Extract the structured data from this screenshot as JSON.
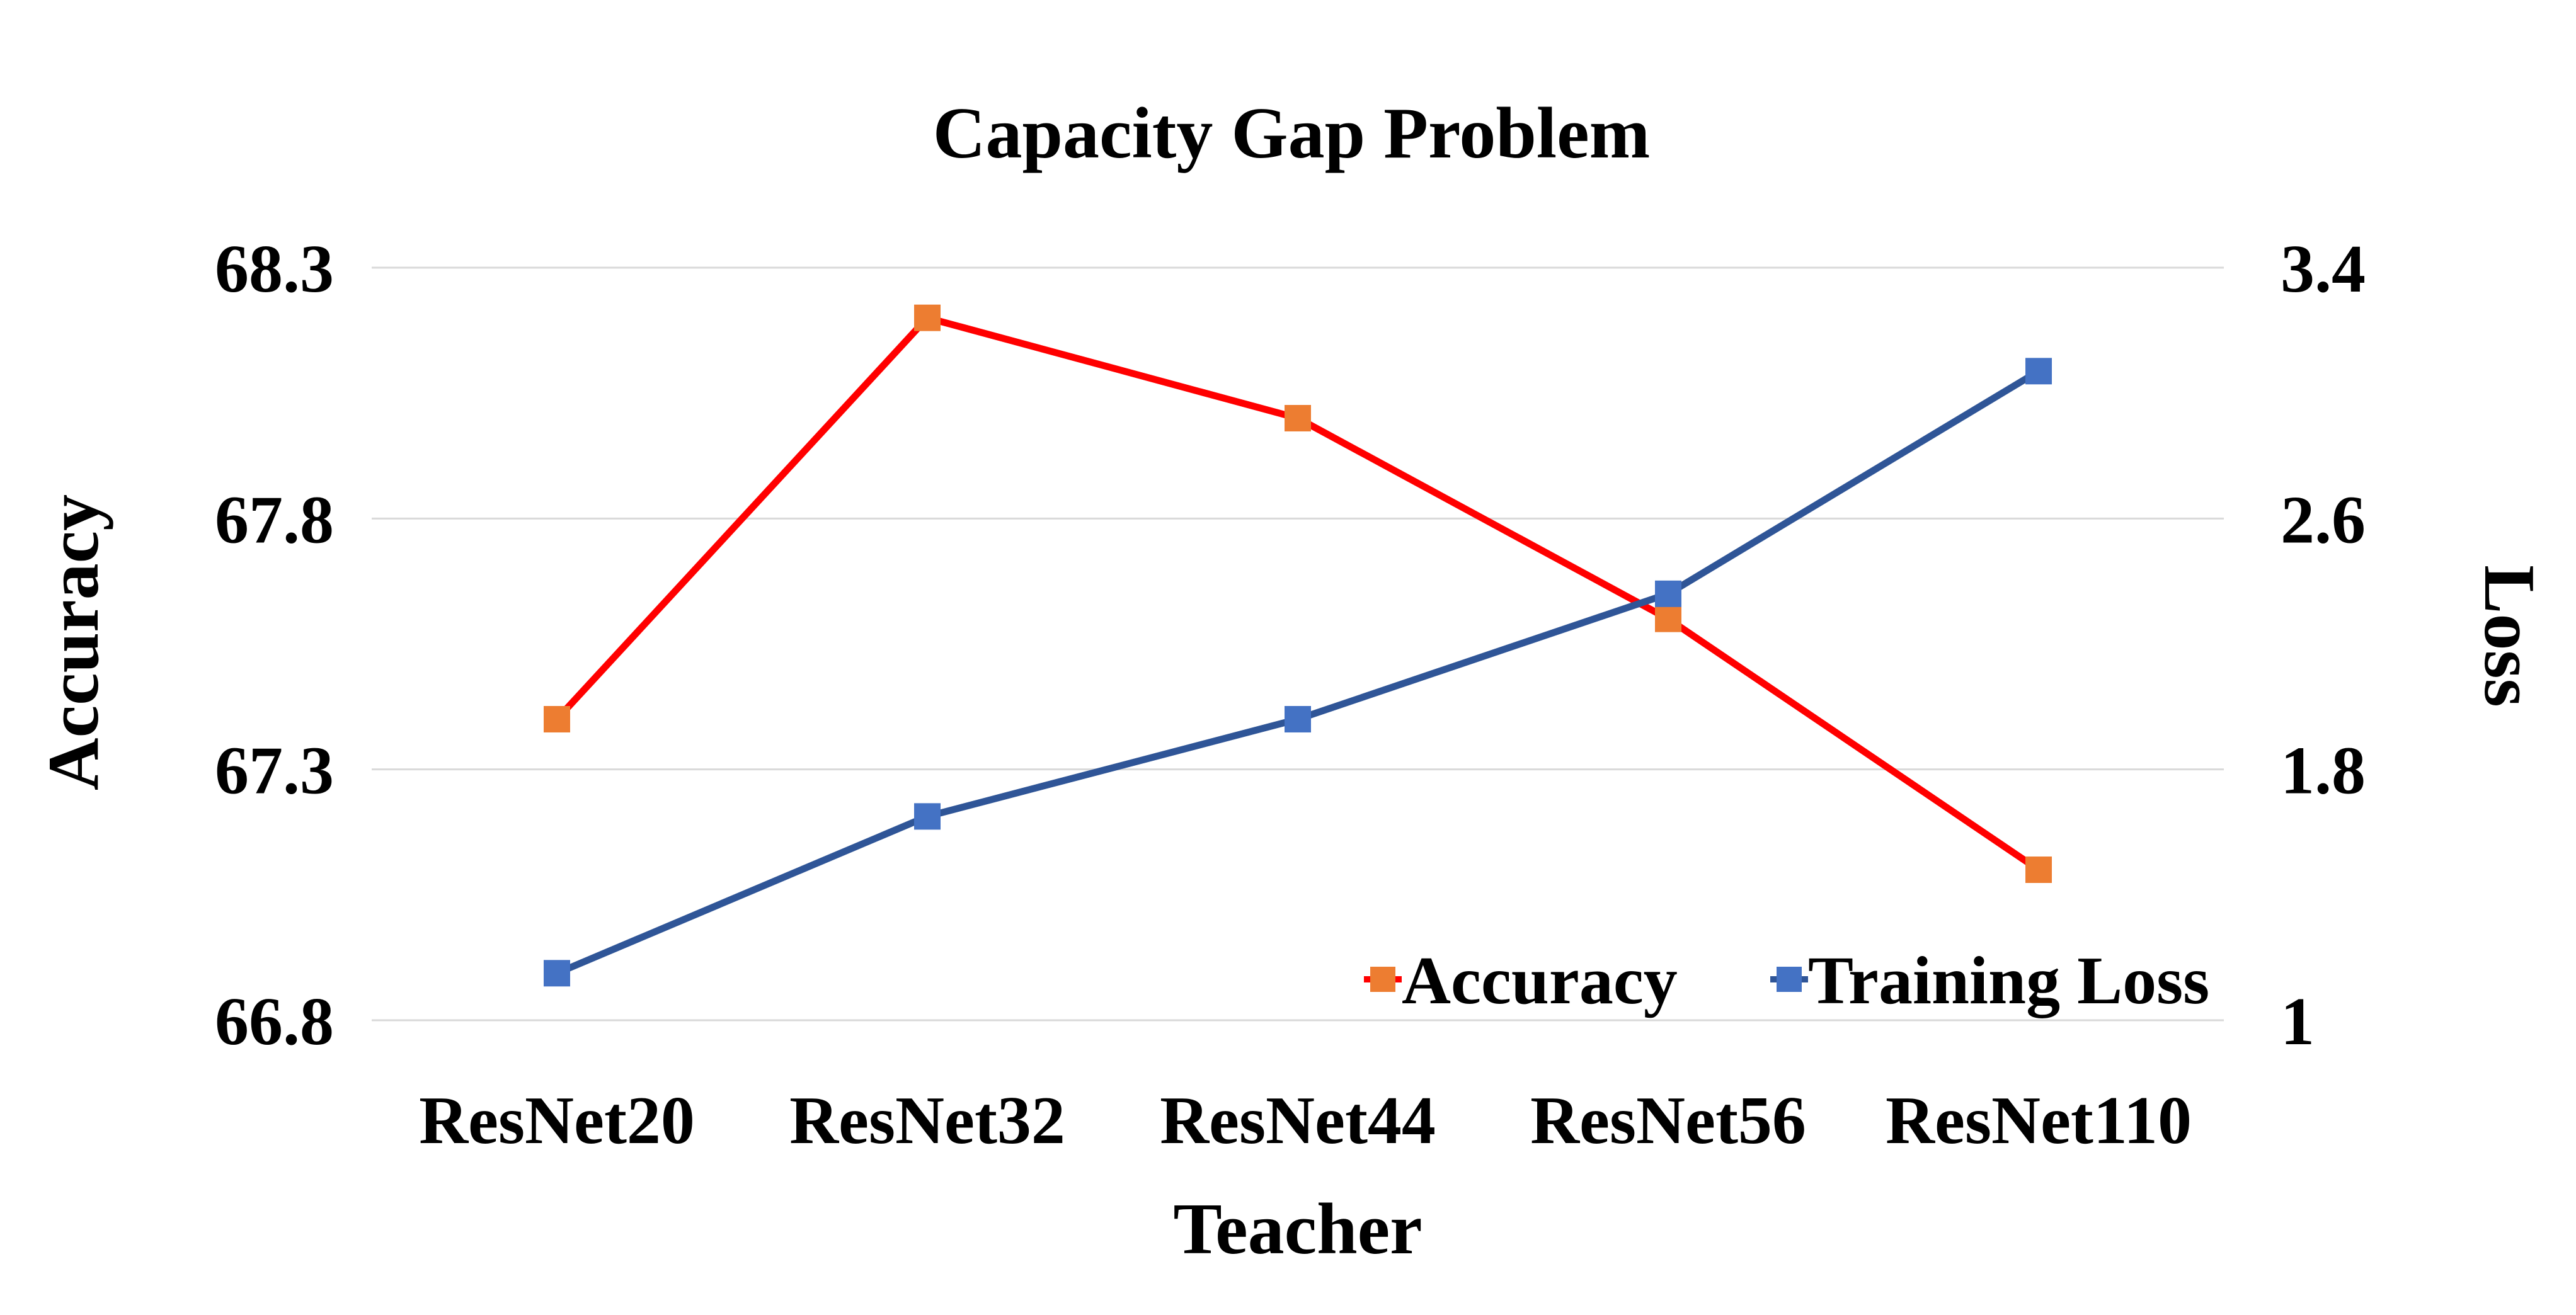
{
  "chart_data": {
    "type": "line",
    "title": "Capacity Gap Problem",
    "xlabel": "Teacher",
    "ylabel": "Accuracy",
    "y2label": "Loss",
    "categories": [
      "ResNet20",
      "ResNet32",
      "ResNet44",
      "ResNet56",
      "ResNet110"
    ],
    "ylim": [
      66.8,
      68.3
    ],
    "y2lim": [
      1,
      3.4
    ],
    "yticks": [
      "66.8",
      "67.3",
      "67.8",
      "68.3"
    ],
    "y2ticks": [
      "1",
      "1.8",
      "2.6",
      "3.4"
    ],
    "grid": true,
    "legend_position": "bottom-right",
    "series": [
      {
        "name": "Accuracy",
        "axis": "left",
        "values": [
          67.4,
          68.2,
          68.0,
          67.6,
          67.1
        ],
        "line_color": "#ff0000",
        "marker_color": "#ed7d31"
      },
      {
        "name": "Training Loss",
        "axis": "right",
        "values": [
          1.15,
          1.65,
          1.96,
          2.36,
          3.07
        ],
        "line_color": "#2f5597",
        "marker_color": "#4472c4"
      }
    ]
  }
}
